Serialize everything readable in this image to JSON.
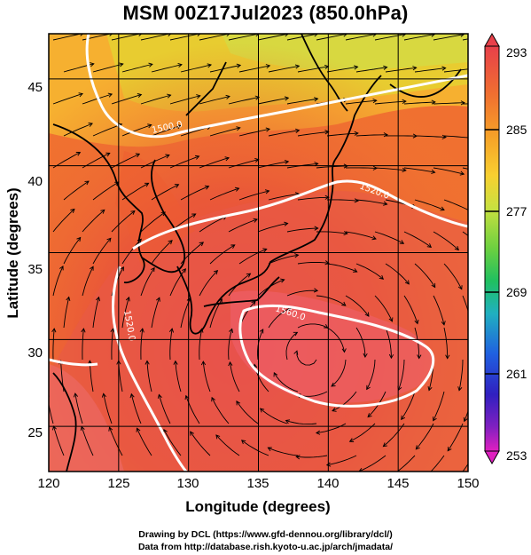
{
  "title": "MSM 00Z17Jul2023 (850.0hPa)",
  "xlabel": "Longitude (degrees)",
  "ylabel": "Latitude  (degrees)",
  "x_ticks": [
    "120",
    "125",
    "130",
    "135",
    "140",
    "145",
    "150"
  ],
  "y_ticks": [
    "25",
    "30",
    "35",
    "40",
    "45"
  ],
  "colorbar": {
    "ticks": [
      "293",
      "285",
      "277",
      "269",
      "261",
      "253"
    ],
    "colors": [
      "#e8404a",
      "#f07030",
      "#f6a028",
      "#f8d030",
      "#c8e040",
      "#6cd040",
      "#20c060",
      "#20b0c0",
      "#2060e0",
      "#3020c0",
      "#8020c0",
      "#e020c0"
    ]
  },
  "contour_labels": [
    "1500.0",
    "1520.0",
    "1560.0",
    "1520.0"
  ],
  "credits": [
    "Drawing by DCL (https://www.gfd-dennou.org/library/dcl/)",
    "Data from http://database.rish.kyoto-u.ac.jp/arch/jmadata/"
  ],
  "chart_data": {
    "type": "heatmap",
    "title": "MSM 00Z17Jul2023 (850.0hPa)",
    "xlabel": "Longitude (degrees)",
    "ylabel": "Latitude  (degrees)",
    "xlim": [
      120,
      150
    ],
    "ylim": [
      22.4,
      47.6
    ],
    "x_ticks": [
      120,
      125,
      130,
      135,
      140,
      145,
      150
    ],
    "y_ticks": [
      25,
      30,
      35,
      40,
      45
    ],
    "colorbar_range": [
      253,
      293
    ],
    "colorbar_ticks": [
      293,
      285,
      277,
      269,
      261,
      253
    ],
    "grid": true,
    "contour_levels": [
      1500.0,
      1520.0,
      1560.0
    ]
  }
}
